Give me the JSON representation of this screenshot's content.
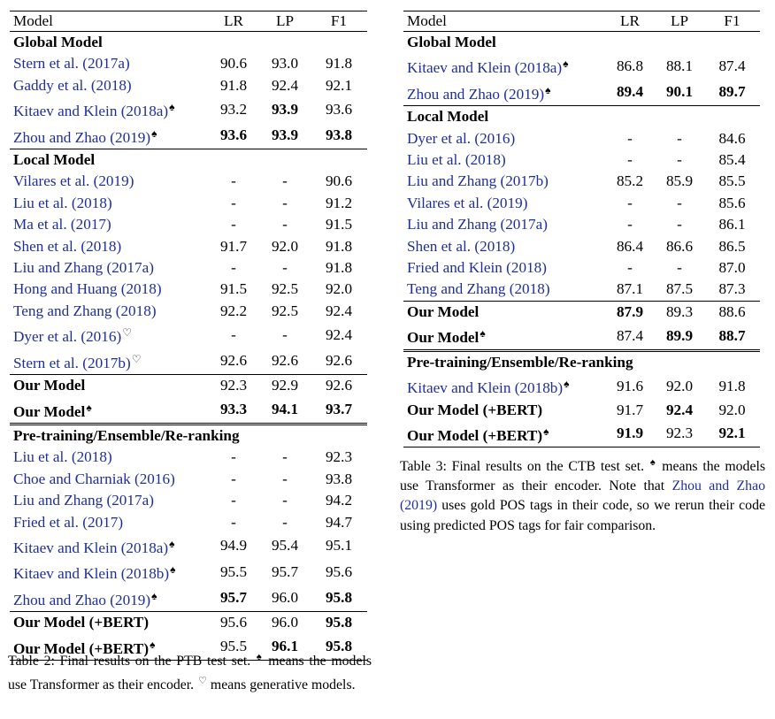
{
  "table2": {
    "headers": [
      "Model",
      "LR",
      "LP",
      "F1"
    ],
    "sections": [
      {
        "title": "Global Model",
        "rows": [
          {
            "model": "Stern et al. (2017a)",
            "cite": true,
            "marker": "",
            "values": [
              "90.6",
              "93.0",
              "91.8"
            ],
            "bold": [
              false,
              false,
              false
            ]
          },
          {
            "model": "Gaddy et al. (2018)",
            "cite": true,
            "marker": "",
            "values": [
              "91.8",
              "92.4",
              "92.1"
            ],
            "bold": [
              false,
              false,
              false
            ]
          },
          {
            "model": "Kitaev and Klein (2018a)",
            "cite": true,
            "marker": "♠",
            "values": [
              "93.2",
              "93.9",
              "93.6"
            ],
            "bold": [
              false,
              true,
              false
            ]
          },
          {
            "model": "Zhou and Zhao (2019)",
            "cite": true,
            "marker": "♠",
            "values": [
              "93.6",
              "93.9",
              "93.8"
            ],
            "bold": [
              true,
              true,
              true
            ]
          }
        ]
      },
      {
        "title": "Local Model",
        "rows": [
          {
            "model": "Vilares et al. (2019)",
            "cite": true,
            "marker": "",
            "values": [
              "-",
              "-",
              "90.6"
            ],
            "bold": [
              false,
              false,
              false
            ]
          },
          {
            "model": "Liu et al. (2018)",
            "cite": true,
            "marker": "",
            "values": [
              "-",
              "-",
              "91.2"
            ],
            "bold": [
              false,
              false,
              false
            ]
          },
          {
            "model": "Ma et al. (2017)",
            "cite": true,
            "marker": "",
            "values": [
              "-",
              "-",
              "91.5"
            ],
            "bold": [
              false,
              false,
              false
            ]
          },
          {
            "model": "Shen et al. (2018)",
            "cite": true,
            "marker": "",
            "values": [
              "91.7",
              "92.0",
              "91.8"
            ],
            "bold": [
              false,
              false,
              false
            ]
          },
          {
            "model": "Liu and Zhang (2017a)",
            "cite": true,
            "marker": "",
            "values": [
              "-",
              "-",
              "91.8"
            ],
            "bold": [
              false,
              false,
              false
            ]
          },
          {
            "model": "Hong and Huang (2018)",
            "cite": true,
            "marker": "",
            "values": [
              "91.5",
              "92.5",
              "92.0"
            ],
            "bold": [
              false,
              false,
              false
            ]
          },
          {
            "model": "Teng and Zhang (2018)",
            "cite": true,
            "marker": "",
            "values": [
              "92.2",
              "92.5",
              "92.4"
            ],
            "bold": [
              false,
              false,
              false
            ]
          },
          {
            "model": "Dyer et al. (2016)",
            "cite": true,
            "marker": "♡",
            "values": [
              "-",
              "-",
              "92.4"
            ],
            "bold": [
              false,
              false,
              false
            ]
          },
          {
            "model": "Stern et al. (2017b)",
            "cite": true,
            "marker": "♡",
            "values": [
              "92.6",
              "92.6",
              "92.6"
            ],
            "bold": [
              false,
              false,
              false
            ]
          },
          {
            "model": "Our Model",
            "cite": false,
            "marker": "",
            "values": [
              "92.3",
              "92.9",
              "92.6"
            ],
            "bold": [
              false,
              false,
              false
            ],
            "topline": true
          },
          {
            "model": "Our Model",
            "cite": false,
            "marker": "♠",
            "values": [
              "93.3",
              "94.1",
              "93.7"
            ],
            "bold": [
              true,
              true,
              true
            ]
          }
        ]
      },
      {
        "title": "Pre-training/Ensemble/Re-ranking",
        "double": true,
        "rows": [
          {
            "model": "Liu et al. (2018)",
            "cite": true,
            "marker": "",
            "values": [
              "-",
              "-",
              "92.3"
            ],
            "bold": [
              false,
              false,
              false
            ]
          },
          {
            "model": "Choe and Charniak (2016)",
            "cite": true,
            "marker": "",
            "values": [
              "-",
              "-",
              "93.8"
            ],
            "bold": [
              false,
              false,
              false
            ]
          },
          {
            "model": "Liu and Zhang (2017a)",
            "cite": true,
            "marker": "",
            "values": [
              "-",
              "-",
              "94.2"
            ],
            "bold": [
              false,
              false,
              false
            ]
          },
          {
            "model": "Fried et al. (2017)",
            "cite": true,
            "marker": "",
            "values": [
              "-",
              "-",
              "94.7"
            ],
            "bold": [
              false,
              false,
              false
            ]
          },
          {
            "model": "Kitaev and Klein (2018a)",
            "cite": true,
            "marker": "♠",
            "values": [
              "94.9",
              "95.4",
              "95.1"
            ],
            "bold": [
              false,
              false,
              false
            ]
          },
          {
            "model": "Kitaev and Klein (2018b)",
            "cite": true,
            "marker": "♠",
            "values": [
              "95.5",
              "95.7",
              "95.6"
            ],
            "bold": [
              false,
              false,
              false
            ]
          },
          {
            "model": "Zhou and Zhao (2019)",
            "cite": true,
            "marker": "♠",
            "values": [
              "95.7",
              "96.0",
              "95.8"
            ],
            "bold": [
              true,
              false,
              true
            ]
          },
          {
            "model": "Our Model (+BERT)",
            "cite": false,
            "marker": "",
            "values": [
              "95.6",
              "96.0",
              "95.8"
            ],
            "bold": [
              false,
              false,
              true
            ],
            "topline": true
          },
          {
            "model": "Our Model (+BERT)",
            "cite": false,
            "marker": "♠",
            "values": [
              "95.5",
              "96.1",
              "95.8"
            ],
            "bold": [
              false,
              true,
              true
            ]
          }
        ]
      }
    ]
  },
  "table3": {
    "headers": [
      "Model",
      "LR",
      "LP",
      "F1"
    ],
    "sections": [
      {
        "title": "Global Model",
        "rows": [
          {
            "model": "Kitaev and Klein (2018a)",
            "cite": true,
            "marker": "♠",
            "values": [
              "86.8",
              "88.1",
              "87.4"
            ],
            "bold": [
              false,
              false,
              false
            ]
          },
          {
            "model": "Zhou and Zhao (2019)",
            "cite": true,
            "marker": "♠",
            "values": [
              "89.4",
              "90.1",
              "89.7"
            ],
            "bold": [
              true,
              true,
              true
            ]
          }
        ]
      },
      {
        "title": "Local Model",
        "rows": [
          {
            "model": "Dyer et al. (2016)",
            "cite": true,
            "marker": "",
            "values": [
              "-",
              "-",
              "84.6"
            ],
            "bold": [
              false,
              false,
              false
            ]
          },
          {
            "model": "Liu et al. (2018)",
            "cite": true,
            "marker": "",
            "values": [
              "-",
              "-",
              "85.4"
            ],
            "bold": [
              false,
              false,
              false
            ]
          },
          {
            "model": "Liu and Zhang (2017b)",
            "cite": true,
            "marker": "",
            "values": [
              "85.2",
              "85.9",
              "85.5"
            ],
            "bold": [
              false,
              false,
              false
            ]
          },
          {
            "model": "Vilares et al. (2019)",
            "cite": true,
            "marker": "",
            "values": [
              "-",
              "-",
              "85.6"
            ],
            "bold": [
              false,
              false,
              false
            ]
          },
          {
            "model": "Liu and Zhang (2017a)",
            "cite": true,
            "marker": "",
            "values": [
              "-",
              "-",
              "86.1"
            ],
            "bold": [
              false,
              false,
              false
            ]
          },
          {
            "model": "Shen et al. (2018)",
            "cite": true,
            "marker": "",
            "values": [
              "86.4",
              "86.6",
              "86.5"
            ],
            "bold": [
              false,
              false,
              false
            ]
          },
          {
            "model": "Fried and Klein (2018)",
            "cite": true,
            "marker": "",
            "values": [
              "-",
              "-",
              "87.0"
            ],
            "bold": [
              false,
              false,
              false
            ]
          },
          {
            "model": "Teng and Zhang (2018)",
            "cite": true,
            "marker": "",
            "values": [
              "87.1",
              "87.5",
              "87.3"
            ],
            "bold": [
              false,
              false,
              false
            ]
          },
          {
            "model": "Our Model",
            "cite": false,
            "marker": "",
            "values": [
              "87.9",
              "89.3",
              "88.6"
            ],
            "bold": [
              true,
              false,
              false
            ],
            "topline": true
          },
          {
            "model": "Our Model",
            "cite": false,
            "marker": "♠",
            "values": [
              "87.4",
              "89.9",
              "88.7"
            ],
            "bold": [
              false,
              true,
              true
            ]
          }
        ]
      },
      {
        "title": "Pre-training/Ensemble/Re-ranking",
        "double": true,
        "rows": [
          {
            "model": "Kitaev and Klein (2018b)",
            "cite": true,
            "marker": "♠",
            "values": [
              "91.6",
              "92.0",
              "91.8"
            ],
            "bold": [
              false,
              false,
              false
            ]
          },
          {
            "model": "Our Model (+BERT)",
            "cite": false,
            "marker": "",
            "values": [
              "91.7",
              "92.4",
              "92.0"
            ],
            "bold": [
              false,
              true,
              false
            ]
          },
          {
            "model": "Our Model (+BERT)",
            "cite": false,
            "marker": "♠",
            "values": [
              "91.9",
              "92.3",
              "92.1"
            ],
            "bold": [
              true,
              false,
              true
            ]
          }
        ]
      }
    ]
  },
  "caption2": {
    "lead": "Table 2: Final results on the PTB test set.",
    "spade": "♠",
    "mid": "means the models use Transformer as their encoder.",
    "heart": "♡",
    "tail": "means generative models."
  },
  "caption3": {
    "lead": "Table 3: Final results on the CTB test set.",
    "spade": "♠",
    "mid": "means the models use Transformer as their encoder. Note that",
    "cite": "Zhou and Zhao (2019)",
    "tail": "uses gold POS tags in their code, so we rerun their code using predicted POS tags for fair comparison."
  }
}
